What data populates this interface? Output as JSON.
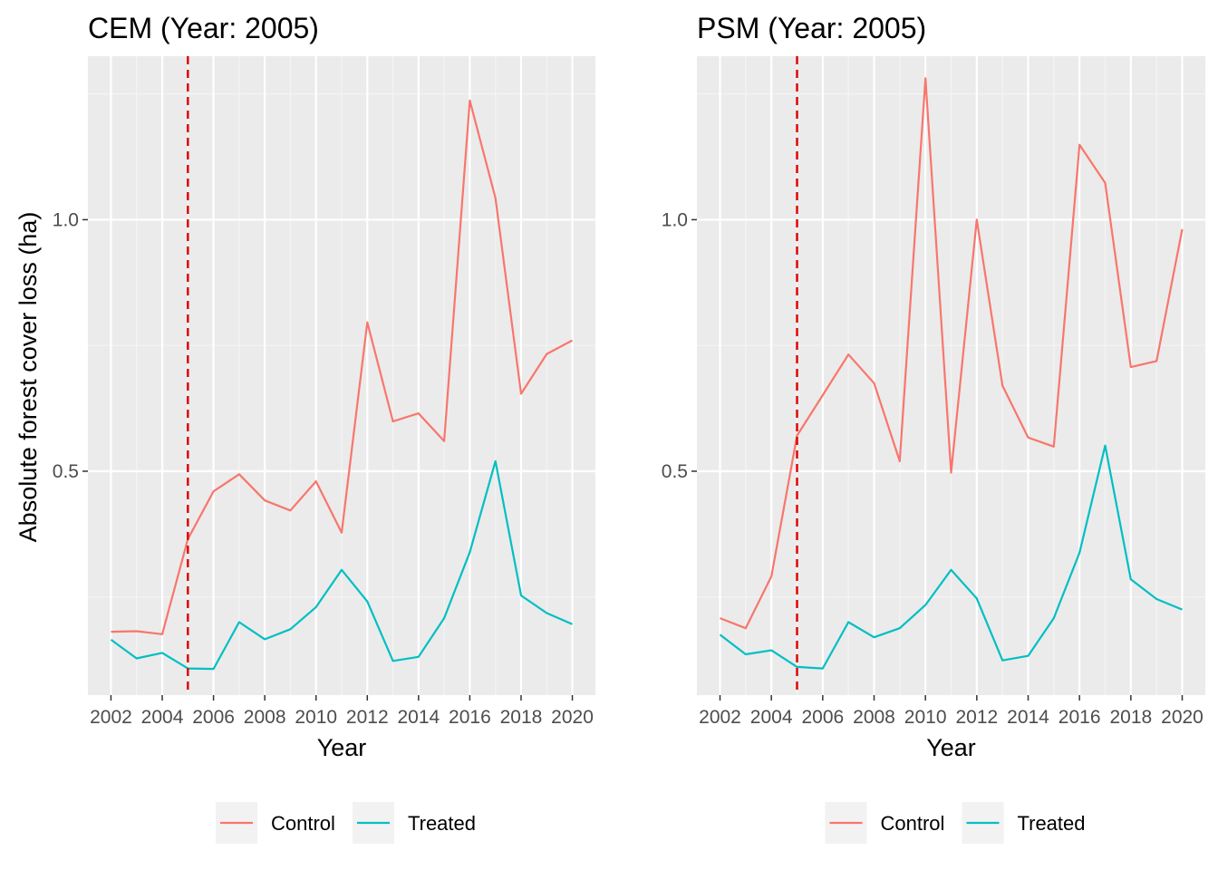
{
  "ylabel": "Absolute forest cover loss (ha)",
  "colors": {
    "panel_bg": "#ebebeb",
    "grid_major": "#ffffff",
    "grid_minor": "#f4f4f4",
    "control": "#f8766d",
    "treated": "#00bfc4",
    "vline": "#dd0000",
    "legend_key_bg": "#f2f2f2"
  },
  "chart_data": [
    {
      "type": "line",
      "title": "CEM (Year: 2005)",
      "xlabel": "Year",
      "ylabel": "Absolute forest cover loss (ha)",
      "x": [
        2002,
        2003,
        2004,
        2005,
        2006,
        2007,
        2008,
        2009,
        2010,
        2011,
        2012,
        2013,
        2014,
        2015,
        2016,
        2017,
        2018,
        2019,
        2020
      ],
      "x_ticks": [
        2002,
        2004,
        2006,
        2008,
        2010,
        2012,
        2014,
        2016,
        2018,
        2020
      ],
      "y_ticks": [
        0.5,
        1.0
      ],
      "y_tick_labels": [
        "0.5",
        "1.0"
      ],
      "xlim": [
        2001.1,
        2020.9
      ],
      "ylim": [
        0.055,
        1.325
      ],
      "vline_x": 2005,
      "series": [
        {
          "name": "Control",
          "color": "#f8766d",
          "values": [
            0.181,
            0.182,
            0.176,
            0.365,
            0.46,
            0.494,
            0.442,
            0.422,
            0.48,
            0.378,
            0.796,
            0.599,
            0.615,
            0.56,
            1.237,
            1.043,
            0.654,
            0.733,
            0.76
          ]
        },
        {
          "name": "Treated",
          "color": "#00bfc4",
          "values": [
            0.165,
            0.128,
            0.139,
            0.108,
            0.107,
            0.2,
            0.166,
            0.186,
            0.23,
            0.304,
            0.241,
            0.123,
            0.131,
            0.208,
            0.339,
            0.52,
            0.253,
            0.218,
            0.196
          ]
        }
      ],
      "legend": {
        "position": "bottom",
        "entries": [
          "Control",
          "Treated"
        ]
      },
      "grid": true
    },
    {
      "type": "line",
      "title": "PSM (Year: 2005)",
      "xlabel": "Year",
      "ylabel": "",
      "x": [
        2002,
        2003,
        2004,
        2005,
        2006,
        2007,
        2008,
        2009,
        2010,
        2011,
        2012,
        2013,
        2014,
        2015,
        2016,
        2017,
        2018,
        2019,
        2020
      ],
      "x_ticks": [
        2002,
        2004,
        2006,
        2008,
        2010,
        2012,
        2014,
        2016,
        2018,
        2020
      ],
      "y_ticks": [
        0.5,
        1.0
      ],
      "y_tick_labels": [
        "0.5",
        "1.0"
      ],
      "xlim": [
        2001.1,
        2020.9
      ],
      "ylim": [
        0.055,
        1.325
      ],
      "vline_x": 2005,
      "series": [
        {
          "name": "Control",
          "color": "#f8766d",
          "values": [
            0.208,
            0.188,
            0.291,
            0.571,
            0.651,
            0.732,
            0.675,
            0.52,
            1.281,
            0.497,
            1.0,
            0.67,
            0.567,
            0.549,
            1.149,
            1.073,
            0.707,
            0.719,
            0.981
          ]
        },
        {
          "name": "Treated",
          "color": "#00bfc4",
          "values": [
            0.175,
            0.136,
            0.144,
            0.111,
            0.108,
            0.2,
            0.17,
            0.188,
            0.234,
            0.304,
            0.247,
            0.124,
            0.133,
            0.208,
            0.338,
            0.551,
            0.285,
            0.246,
            0.225
          ]
        }
      ],
      "legend": {
        "position": "bottom",
        "entries": [
          "Control",
          "Treated"
        ]
      },
      "grid": true
    }
  ]
}
